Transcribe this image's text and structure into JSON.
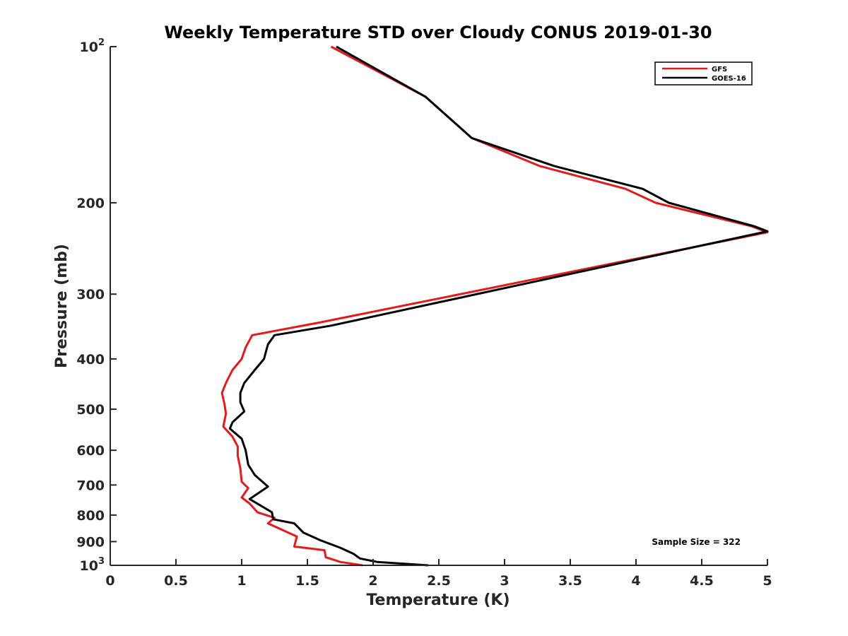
{
  "chart_data": {
    "type": "line",
    "title": "Weekly Temperature STD over Cloudy CONUS 2019-01-30",
    "xlabel": "Temperature (K)",
    "ylabel": "Pressure (mb)",
    "xlim": [
      0,
      5
    ],
    "ylim": [
      100,
      1000
    ],
    "y_scale": "log",
    "y_reversed": true,
    "grid": false,
    "legend_position": "top-right",
    "x_ticks": [
      {
        "value": 0,
        "label": "0"
      },
      {
        "value": 0.5,
        "label": "0.5"
      },
      {
        "value": 1,
        "label": "1"
      },
      {
        "value": 1.5,
        "label": "1.5"
      },
      {
        "value": 2,
        "label": "2"
      },
      {
        "value": 2.5,
        "label": "2.5"
      },
      {
        "value": 3,
        "label": "3"
      },
      {
        "value": 3.5,
        "label": "3.5"
      },
      {
        "value": 4,
        "label": "4"
      },
      {
        "value": 4.5,
        "label": "4.5"
      },
      {
        "value": 5,
        "label": "5"
      }
    ],
    "y_ticks": [
      {
        "value": 100,
        "base": "10",
        "exp": "2"
      },
      {
        "value": 200,
        "base": "200",
        "exp": ""
      },
      {
        "value": 300,
        "base": "300",
        "exp": ""
      },
      {
        "value": 400,
        "base": "400",
        "exp": ""
      },
      {
        "value": 500,
        "base": "500",
        "exp": ""
      },
      {
        "value": 600,
        "base": "600",
        "exp": ""
      },
      {
        "value": 700,
        "base": "700",
        "exp": ""
      },
      {
        "value": 800,
        "base": "800",
        "exp": ""
      },
      {
        "value": 900,
        "base": "900",
        "exp": ""
      },
      {
        "value": 1000,
        "base": "10",
        "exp": "3"
      }
    ],
    "series": [
      {
        "name": "GFS",
        "color": "#e41a1c",
        "points": [
          [
            1.68,
            100
          ],
          [
            2.4,
            125
          ],
          [
            2.75,
            150
          ],
          [
            3.27,
            170
          ],
          [
            3.92,
            188
          ],
          [
            4.15,
            200
          ],
          [
            4.88,
            222
          ],
          [
            5.0,
            228
          ],
          [
            5.0,
            228
          ],
          [
            1.6,
            340
          ],
          [
            1.08,
            360
          ],
          [
            1.03,
            380
          ],
          [
            1.0,
            400
          ],
          [
            0.93,
            420
          ],
          [
            0.88,
            445
          ],
          [
            0.85,
            465
          ],
          [
            0.87,
            490
          ],
          [
            0.88,
            510
          ],
          [
            0.86,
            540
          ],
          [
            0.93,
            565
          ],
          [
            0.97,
            590
          ],
          [
            0.97,
            615
          ],
          [
            0.99,
            650
          ],
          [
            1.0,
            690
          ],
          [
            1.05,
            710
          ],
          [
            1.0,
            740
          ],
          [
            1.06,
            760
          ],
          [
            1.12,
            790
          ],
          [
            1.25,
            810
          ],
          [
            1.2,
            830
          ],
          [
            1.42,
            880
          ],
          [
            1.4,
            920
          ],
          [
            1.63,
            935
          ],
          [
            1.64,
            965
          ],
          [
            1.75,
            985
          ],
          [
            1.92,
            1000
          ]
        ]
      },
      {
        "name": "GOES-16",
        "color": "#000000",
        "points": [
          [
            1.72,
            100
          ],
          [
            2.4,
            125
          ],
          [
            2.75,
            150
          ],
          [
            3.38,
            170
          ],
          [
            4.05,
            188
          ],
          [
            4.25,
            200
          ],
          [
            4.9,
            222
          ],
          [
            5.0,
            227
          ],
          [
            5.0,
            227
          ],
          [
            1.68,
            345
          ],
          [
            1.25,
            360
          ],
          [
            1.2,
            375
          ],
          [
            1.17,
            400
          ],
          [
            1.1,
            420
          ],
          [
            1.02,
            445
          ],
          [
            0.99,
            465
          ],
          [
            0.99,
            485
          ],
          [
            1.02,
            505
          ],
          [
            0.93,
            530
          ],
          [
            0.91,
            545
          ],
          [
            1.0,
            570
          ],
          [
            1.03,
            600
          ],
          [
            1.05,
            640
          ],
          [
            1.1,
            670
          ],
          [
            1.2,
            705
          ],
          [
            1.06,
            745
          ],
          [
            1.23,
            790
          ],
          [
            1.24,
            815
          ],
          [
            1.4,
            830
          ],
          [
            1.47,
            865
          ],
          [
            1.6,
            895
          ],
          [
            1.75,
            925
          ],
          [
            1.85,
            950
          ],
          [
            1.9,
            970
          ],
          [
            2.03,
            985
          ],
          [
            2.42,
            1000
          ]
        ]
      }
    ],
    "annotation": "Sample Size = 322"
  }
}
